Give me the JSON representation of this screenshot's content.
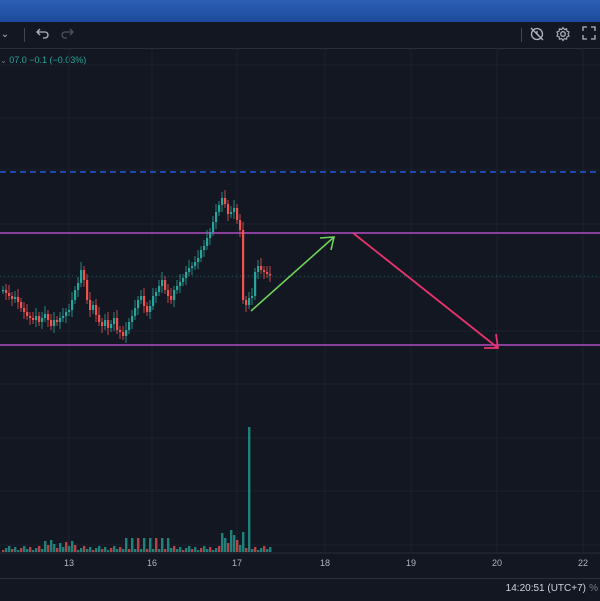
{
  "toolbar": {
    "interval_caret": "⌄",
    "undo_icon": "undo-icon",
    "redo_icon": "redo-icon",
    "alert_icon": "alert-clock-icon",
    "settings_icon": "gear-icon",
    "fullscreen_icon": "fullscreen-icon"
  },
  "legend": {
    "caret": "⌄",
    "quote_text": "07.0 −0.1 (−0.03%)"
  },
  "status_bar": {
    "time": "14:20:51 (UTC+7)",
    "percent_label": "%"
  },
  "colors": {
    "background": "#131722",
    "up": "#26a69a",
    "down": "#ef5350",
    "range_line": "#b04cc2",
    "dashed_line": "#2962ff",
    "arrow_up": "#6fd25a",
    "arrow_down": "#e8336d"
  },
  "chart_data": {
    "type": "candlestick",
    "x_ticks": [
      "13",
      "16",
      "17",
      "18",
      "19",
      "20",
      "22"
    ],
    "annotations": [
      {
        "kind": "horizontal_dashed_line",
        "color": "#2962ff"
      },
      {
        "kind": "range_top_line",
        "color": "#b04cc2"
      },
      {
        "kind": "range_bottom_line",
        "color": "#b04cc2"
      },
      {
        "kind": "arrow",
        "direction": "up",
        "color": "#6fd25a"
      },
      {
        "kind": "arrow",
        "direction": "down",
        "color": "#e8336d"
      }
    ]
  }
}
